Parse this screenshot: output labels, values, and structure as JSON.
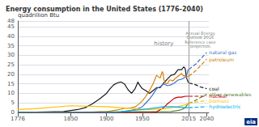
{
  "chart_data": {
    "type": "line",
    "title": "Energy consumption in the United States (1776-2040)",
    "ylabel": "quadrillion Btu",
    "xlim": [
      1776,
      2043
    ],
    "xticks": [
      1776,
      1850,
      1900,
      1950,
      2015,
      2040
    ],
    "ylim": [
      0,
      48
    ],
    "yticks": [
      0,
      5,
      10,
      15,
      20,
      25,
      30,
      35,
      40,
      45
    ],
    "grid": true,
    "vline": 2015,
    "annotations": [
      {
        "text": "history",
        "x": 1980,
        "y": 38
      },
      {
        "text": "Annual Energy\nOutlook 2016\nReference case\nprojection",
        "x": 2031,
        "y": 43
      },
      {
        "text": "eia"
      }
    ],
    "series": [
      {
        "name": "coal",
        "color": "#1a1a1a",
        "line_style": "solid",
        "x": [
          1776,
          1840,
          1850,
          1860,
          1870,
          1880,
          1890,
          1900,
          1905,
          1910,
          1915,
          1920,
          1925,
          1930,
          1935,
          1940,
          1944,
          1945,
          1950,
          1955,
          1960,
          1965,
          1970,
          1975,
          1980,
          1985,
          1990,
          1995,
          2000,
          2005,
          2008,
          2010,
          2012,
          2014,
          2015
        ],
        "values": [
          0,
          0.5,
          1.0,
          1.5,
          2.5,
          4.5,
          7.0,
          10.0,
          12.5,
          14.5,
          15.5,
          16.0,
          15.0,
          12.0,
          10.0,
          12.5,
          16.0,
          15.0,
          12.5,
          11.5,
          10.0,
          11.5,
          13.0,
          13.0,
          15.5,
          17.5,
          19.5,
          20.0,
          22.5,
          22.5,
          24.0,
          23.0,
          18.0,
          16.0,
          15.5
        ],
        "projection": {
          "line_style": "dashed",
          "x": [
            2015,
            2020,
            2025,
            2030,
            2035,
            2040
          ],
          "values": [
            15.5,
            15.0,
            14.5,
            13.5,
            13.0,
            12.5
          ]
        }
      },
      {
        "name": "petroleum",
        "color": "#d4820a",
        "line_style": "solid",
        "x": [
          1776,
          1800,
          1820,
          1840,
          1860,
          1870,
          1880,
          1890,
          1900,
          1905,
          1910,
          1915,
          1920,
          1925,
          1930,
          1935,
          1940,
          1945,
          1950,
          1955,
          1960,
          1965,
          1970,
          1975,
          1977,
          1978,
          1979,
          1980,
          1982,
          1985,
          1988,
          1990,
          1993,
          1995,
          2000,
          2005,
          2008,
          2010,
          2012,
          2014,
          2015
        ],
        "values": [
          0,
          0,
          0,
          0,
          0,
          0.1,
          0.2,
          0.4,
          0.5,
          0.7,
          1.0,
          1.3,
          1.7,
          2.2,
          2.3,
          2.5,
          2.9,
          4.3,
          6.0,
          8.5,
          11.5,
          15.0,
          19.5,
          18.0,
          20.5,
          21.5,
          20.5,
          17.5,
          15.5,
          15.0,
          17.0,
          17.0,
          16.5,
          17.5,
          19.0,
          20.5,
          19.0,
          19.5,
          18.5,
          19.0,
          19.0
        ],
        "projection": {
          "line_style": "dashed",
          "x": [
            2015,
            2020,
            2025,
            2030,
            2035,
            2040
          ],
          "values": [
            19.0,
            20.5,
            22.0,
            24.0,
            26.0,
            28.0
          ]
        }
      },
      {
        "name": "natural gas",
        "color": "#4472c4",
        "line_style": "solid",
        "x": [
          1776,
          1900,
          1910,
          1920,
          1930,
          1940,
          1950,
          1955,
          1960,
          1965,
          1970,
          1975,
          1980,
          1985,
          1990,
          1995,
          2000,
          2005,
          2008,
          2010,
          2012,
          2014,
          2015
        ],
        "values": [
          0,
          0,
          0.1,
          0.3,
          0.8,
          1.5,
          3.0,
          5.0,
          7.0,
          9.5,
          12.5,
          13.5,
          15.0,
          14.0,
          14.5,
          15.5,
          17.0,
          17.5,
          18.0,
          18.5,
          19.5,
          22.5,
          22.5
        ],
        "projection": {
          "line_style": "dashed",
          "x": [
            2015,
            2020,
            2025,
            2030,
            2035,
            2040
          ],
          "values": [
            22.5,
            24.0,
            25.5,
            27.5,
            29.5,
            31.5
          ]
        }
      },
      {
        "name": "other renewables",
        "color": "#548235",
        "line_style": "solid",
        "x": [
          1776,
          1990,
          2000,
          2005,
          2010,
          2014,
          2015
        ],
        "values": [
          0,
          0.5,
          1.0,
          1.5,
          2.5,
          4.5,
          4.8
        ],
        "projection": {
          "line_style": "dashed",
          "x": [
            2015,
            2020,
            2025,
            2030,
            2035,
            2040
          ],
          "values": [
            4.8,
            5.5,
            6.5,
            7.5,
            8.5,
            9.5
          ]
        }
      },
      {
        "name": "nuclear",
        "color": "#c00000",
        "line_style": "solid",
        "x": [
          1776,
          1960,
          1965,
          1970,
          1975,
          1980,
          1985,
          1990,
          1995,
          2000,
          2005,
          2010,
          2014,
          2015
        ],
        "values": [
          0,
          0,
          0.1,
          0.2,
          1.5,
          2.5,
          4.5,
          6.0,
          7.5,
          8.0,
          8.0,
          8.5,
          8.5,
          8.5
        ],
        "projection": {
          "line_style": "dashed",
          "x": [
            2015,
            2020,
            2025,
            2030,
            2035,
            2040
          ],
          "values": [
            8.5,
            8.5,
            8.5,
            8.5,
            8.5,
            8.5
          ]
        }
      },
      {
        "name": "biomass",
        "color": "#ffc000",
        "line_style": "solid",
        "x": [
          1776,
          1800,
          1850,
          1900,
          1920,
          1940,
          1960,
          1980,
          1990,
          2000,
          2005,
          2010,
          2014,
          2015
        ],
        "values": [
          1.5,
          2.0,
          3.5,
          3.0,
          2.5,
          2.0,
          1.5,
          2.0,
          2.5,
          3.0,
          3.5,
          4.0,
          4.5,
          4.8
        ],
        "projection": {
          "line_style": "dashed",
          "x": [
            2015,
            2020,
            2025,
            2030,
            2035,
            2040
          ],
          "values": [
            4.8,
            5.2,
            5.5,
            5.8,
            6.0,
            6.2
          ]
        }
      },
      {
        "name": "hydroelectric",
        "color": "#00b0f0",
        "line_style": "solid",
        "x": [
          1776,
          1900,
          1910,
          1920,
          1930,
          1940,
          1950,
          1960,
          1970,
          1980,
          1990,
          2000,
          2005,
          2010,
          2014,
          2015
        ],
        "values": [
          0,
          0.1,
          0.2,
          0.4,
          0.8,
          1.2,
          1.5,
          2.0,
          2.5,
          3.0,
          3.0,
          2.8,
          2.7,
          2.5,
          2.5,
          2.5
        ],
        "projection": {
          "line_style": "dashed",
          "x": [
            2015,
            2020,
            2025,
            2030,
            2035,
            2040
          ],
          "values": [
            2.5,
            2.6,
            2.7,
            2.8,
            2.9,
            3.0
          ]
        }
      }
    ]
  }
}
